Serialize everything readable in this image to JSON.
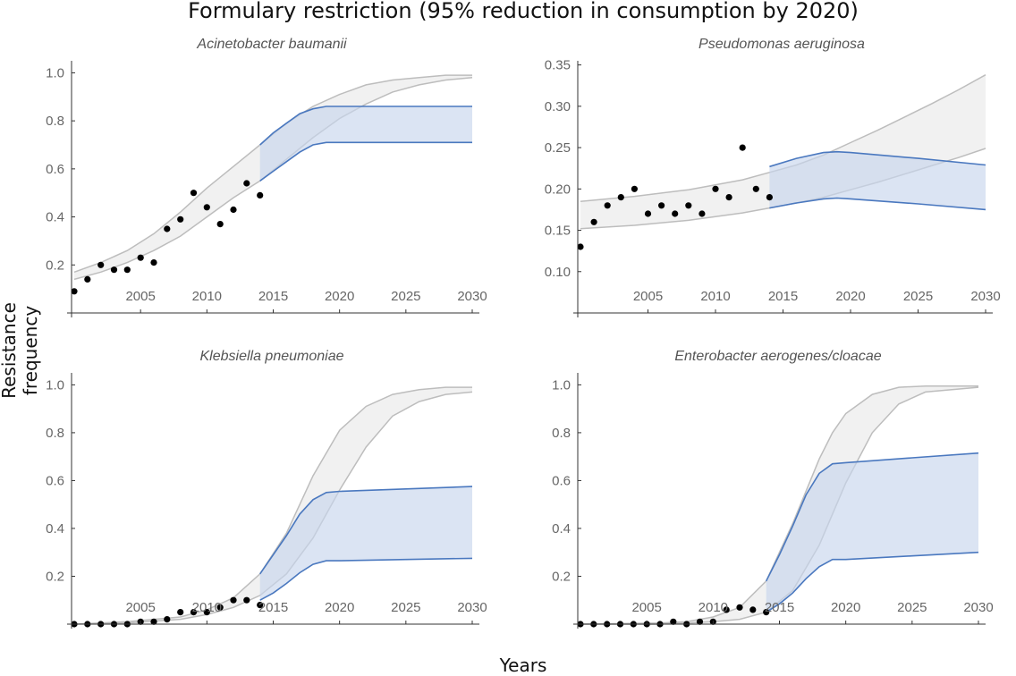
{
  "figure": {
    "title": "Formulary restriction (95% reduction in consumption by 2020)",
    "ylabel": "Resistance frequency",
    "xlabel": "Years"
  },
  "colors": {
    "observed": "#000000",
    "model_band_fill": "#eeeeee",
    "model_band_line": "#bdbdbd",
    "intervention_fill": "#c7d6ec",
    "intervention_line": "#4a78bf",
    "axis": "#333333",
    "tick_text": "#666666",
    "panel_title": "#555555"
  },
  "chart_data": [
    {
      "type": "line",
      "title": "Acinetobacter baumanii",
      "xlim": [
        2000,
        2030
      ],
      "ylim": [
        0,
        1.05
      ],
      "xticks": [
        "2005",
        "2010",
        "2015",
        "2020",
        "2025",
        "2030"
      ],
      "yticks": [
        "0.2",
        "0.4",
        "0.6",
        "0.8",
        "1.0"
      ],
      "observed": {
        "x": [
          2000,
          2001,
          2002,
          2003,
          2004,
          2005,
          2006,
          2007,
          2008,
          2009,
          2010,
          2011,
          2012,
          2013,
          2014
        ],
        "y": [
          0.09,
          0.14,
          0.2,
          0.18,
          0.18,
          0.23,
          0.21,
          0.35,
          0.39,
          0.5,
          0.44,
          0.37,
          0.43,
          0.54,
          0.49
        ]
      },
      "model_band": {
        "x": [
          2000,
          2002,
          2004,
          2006,
          2008,
          2010,
          2012,
          2014,
          2016,
          2018,
          2020,
          2022,
          2024,
          2026,
          2028,
          2030
        ],
        "upper": [
          0.17,
          0.21,
          0.26,
          0.33,
          0.42,
          0.52,
          0.61,
          0.7,
          0.79,
          0.86,
          0.91,
          0.95,
          0.97,
          0.98,
          0.99,
          0.99
        ],
        "lower": [
          0.14,
          0.17,
          0.21,
          0.26,
          0.32,
          0.4,
          0.48,
          0.55,
          0.64,
          0.73,
          0.81,
          0.87,
          0.92,
          0.95,
          0.97,
          0.98
        ]
      },
      "intervention_band": {
        "x": [
          2014,
          2015,
          2016,
          2017,
          2018,
          2019,
          2020,
          2025,
          2030
        ],
        "upper": [
          0.7,
          0.75,
          0.79,
          0.83,
          0.85,
          0.86,
          0.86,
          0.86,
          0.86
        ],
        "lower": [
          0.55,
          0.59,
          0.63,
          0.67,
          0.7,
          0.71,
          0.71,
          0.71,
          0.71
        ]
      }
    },
    {
      "type": "line",
      "title": "Pseudomonas aeruginosa",
      "xlim": [
        2000,
        2030
      ],
      "ylim": [
        0.05,
        0.355
      ],
      "xticks": [
        "2005",
        "2010",
        "2015",
        "2020",
        "2025",
        "2030"
      ],
      "yticks": [
        "0.10",
        "0.15",
        "0.20",
        "0.25",
        "0.30",
        "0.35"
      ],
      "observed": {
        "x": [
          2000,
          2001,
          2002,
          2003,
          2004,
          2005,
          2006,
          2007,
          2008,
          2009,
          2010,
          2011,
          2012,
          2013,
          2014
        ],
        "y": [
          0.13,
          0.16,
          0.18,
          0.19,
          0.2,
          0.17,
          0.18,
          0.17,
          0.18,
          0.17,
          0.2,
          0.19,
          0.25,
          0.2,
          0.19
        ]
      },
      "model_band": {
        "x": [
          2000,
          2004,
          2008,
          2012,
          2014,
          2016,
          2018,
          2020,
          2022,
          2024,
          2026,
          2028,
          2030
        ],
        "upper": [
          0.185,
          0.191,
          0.199,
          0.211,
          0.22,
          0.229,
          0.241,
          0.256,
          0.271,
          0.287,
          0.303,
          0.32,
          0.338
        ],
        "lower": [
          0.152,
          0.156,
          0.162,
          0.171,
          0.177,
          0.183,
          0.19,
          0.199,
          0.208,
          0.218,
          0.228,
          0.238,
          0.249
        ]
      },
      "intervention_band": {
        "x": [
          2014,
          2016,
          2018,
          2019,
          2020,
          2025,
          2030
        ],
        "upper": [
          0.227,
          0.237,
          0.244,
          0.245,
          0.244,
          0.237,
          0.229
        ],
        "lower": [
          0.177,
          0.183,
          0.188,
          0.189,
          0.188,
          0.182,
          0.175
        ]
      }
    },
    {
      "type": "line",
      "title": "Klebsiella pneumoniae",
      "xlim": [
        2000,
        2030
      ],
      "ylim": [
        0,
        1.05
      ],
      "xticks": [
        "2005",
        "2010",
        "2015",
        "2020",
        "2025",
        "2030"
      ],
      "yticks": [
        "0.2",
        "0.4",
        "0.6",
        "0.8",
        "1.0"
      ],
      "observed": {
        "x": [
          2000,
          2001,
          2002,
          2003,
          2004,
          2005,
          2006,
          2007,
          2008,
          2009,
          2010,
          2011,
          2012,
          2013,
          2014
        ],
        "y": [
          0.0,
          0.0,
          0.0,
          0.0,
          0.0,
          0.01,
          0.01,
          0.02,
          0.05,
          0.05,
          0.05,
          0.07,
          0.1,
          0.1,
          0.08
        ]
      },
      "model_band": {
        "x": [
          2000,
          2004,
          2008,
          2010,
          2012,
          2014,
          2016,
          2018,
          2020,
          2022,
          2024,
          2026,
          2028,
          2030
        ],
        "upper": [
          0.0,
          0.01,
          0.03,
          0.06,
          0.11,
          0.21,
          0.38,
          0.62,
          0.81,
          0.91,
          0.96,
          0.98,
          0.99,
          0.99
        ],
        "lower": [
          0.0,
          0.005,
          0.02,
          0.04,
          0.07,
          0.12,
          0.21,
          0.36,
          0.56,
          0.74,
          0.87,
          0.93,
          0.96,
          0.97
        ]
      },
      "intervention_band": {
        "x": [
          2014,
          2015,
          2016,
          2017,
          2018,
          2019,
          2020,
          2025,
          2030
        ],
        "upper": [
          0.21,
          0.29,
          0.37,
          0.46,
          0.52,
          0.55,
          0.555,
          0.565,
          0.575
        ],
        "lower": [
          0.1,
          0.13,
          0.17,
          0.215,
          0.25,
          0.265,
          0.265,
          0.27,
          0.275
        ]
      }
    },
    {
      "type": "line",
      "title": "Enterobacter aerogenes/cloacae",
      "xlim": [
        2000,
        2030
      ],
      "ylim": [
        0,
        1.05
      ],
      "xticks": [
        "2005",
        "2010",
        "2015",
        "2020",
        "2025",
        "2030"
      ],
      "yticks": [
        "0.2",
        "0.4",
        "0.6",
        "0.8",
        "1.0"
      ],
      "observed": {
        "x": [
          2000,
          2001,
          2002,
          2003,
          2004,
          2005,
          2006,
          2007,
          2008,
          2009,
          2010,
          2011,
          2012,
          2013,
          2014
        ],
        "y": [
          0.0,
          0.0,
          0.0,
          0.0,
          0.0,
          0.0,
          0.0,
          0.01,
          0.0,
          0.01,
          0.01,
          0.06,
          0.07,
          0.06,
          0.05
        ]
      },
      "model_band": {
        "x": [
          2000,
          2006,
          2008,
          2010,
          2012,
          2014,
          2016,
          2018,
          2019,
          2020,
          2022,
          2024,
          2026,
          2030
        ],
        "upper": [
          0.0,
          0.005,
          0.01,
          0.03,
          0.07,
          0.18,
          0.42,
          0.69,
          0.8,
          0.88,
          0.96,
          0.99,
          0.995,
          0.995
        ],
        "lower": [
          0.0,
          0.0,
          0.005,
          0.01,
          0.02,
          0.05,
          0.14,
          0.33,
          0.46,
          0.59,
          0.8,
          0.92,
          0.97,
          0.99
        ]
      },
      "intervention_band": {
        "x": [
          2014,
          2015,
          2016,
          2017,
          2018,
          2019,
          2020,
          2025,
          2030
        ],
        "upper": [
          0.18,
          0.29,
          0.41,
          0.54,
          0.63,
          0.67,
          0.675,
          0.695,
          0.715
        ],
        "lower": [
          0.05,
          0.085,
          0.13,
          0.19,
          0.24,
          0.27,
          0.27,
          0.285,
          0.3
        ]
      }
    }
  ]
}
